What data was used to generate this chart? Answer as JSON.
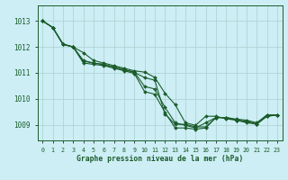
{
  "title": "Graphe pression niveau de la mer (hPa)",
  "background_color": "#cdeef5",
  "grid_color": "#b0d4d4",
  "line_color": "#1a5c2a",
  "spine_color": "#1a5c2a",
  "xlim": [
    -0.5,
    23.5
  ],
  "ylim": [
    1008.4,
    1013.6
  ],
  "yticks": [
    1009,
    1010,
    1011,
    1012,
    1013
  ],
  "xticks": [
    0,
    1,
    2,
    3,
    4,
    5,
    6,
    7,
    8,
    9,
    10,
    11,
    12,
    13,
    14,
    15,
    16,
    17,
    18,
    19,
    20,
    21,
    22,
    23
  ],
  "series": [
    [
      1013.0,
      1012.75,
      1012.1,
      1012.0,
      1011.45,
      1011.38,
      1011.32,
      1011.22,
      1011.12,
      1011.02,
      1010.82,
      1010.72,
      1009.42,
      1009.02,
      1009.02,
      1008.92,
      1008.92,
      1009.28,
      1009.28,
      1009.22,
      1009.18,
      1009.08,
      1009.38,
      1009.38
    ],
    [
      1013.0,
      1012.75,
      1012.1,
      1012.0,
      1011.78,
      1011.48,
      1011.38,
      1011.28,
      1011.18,
      1011.08,
      1011.03,
      1010.83,
      1010.22,
      1009.78,
      1009.08,
      1008.98,
      1009.33,
      1009.33,
      1009.23,
      1009.18,
      1009.08,
      1009.03,
      1009.38,
      1009.38
    ],
    [
      1013.0,
      1012.75,
      1012.12,
      1012.0,
      1011.38,
      1011.33,
      1011.28,
      1011.18,
      1011.08,
      1010.98,
      1010.28,
      1010.18,
      1009.48,
      1008.88,
      1008.88,
      1008.83,
      1008.88,
      1009.28,
      1009.28,
      1009.18,
      1009.13,
      1009.03,
      1009.33,
      1009.38
    ],
    [
      1013.0,
      1012.75,
      1012.1,
      1012.0,
      1011.48,
      1011.38,
      1011.33,
      1011.23,
      1011.13,
      1011.03,
      1010.48,
      1010.38,
      1009.68,
      1009.08,
      1008.98,
      1008.88,
      1009.08,
      1009.28,
      1009.28,
      1009.18,
      1009.13,
      1009.03,
      1009.33,
      1009.38
    ]
  ]
}
